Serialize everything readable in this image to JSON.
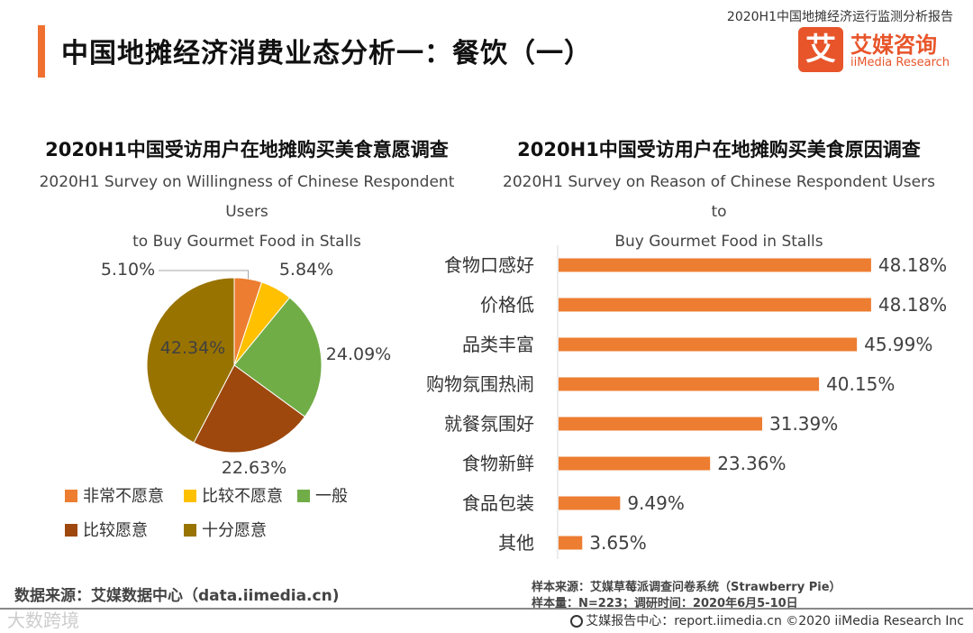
{
  "header": {
    "report_name": "2020H1中国地摊经济运行监测分析报告",
    "title": "中国地摊经济消费业态分析一：餐饮（一）",
    "logo_mark": "艾",
    "logo_cn": "艾媒咨询",
    "logo_en": "iiMedia Research"
  },
  "colors": {
    "accent": "#f07030",
    "bar": "#ed7d31"
  },
  "chart_data": [
    {
      "type": "pie",
      "title": "2020H1中国受访用户在地摊购买美食意愿调查",
      "subtitle_en_line1": "2020H1 Survey on Willingness of Chinese Respondent Users",
      "subtitle_en_line2": "to Buy Gourmet Food in Stalls",
      "slices": [
        {
          "label": "非常不愿意",
          "value": 5.1,
          "display": "5.10%",
          "color": "#ed7d31"
        },
        {
          "label": "比较不愿意",
          "value": 5.84,
          "display": "5.84%",
          "color": "#ffc000"
        },
        {
          "label": "一般",
          "value": 24.09,
          "display": "24.09%",
          "color": "#70ad47"
        },
        {
          "label": "比较愿意",
          "value": 22.63,
          "display": "22.63%",
          "color": "#9e480e"
        },
        {
          "label": "十分愿意",
          "value": 42.34,
          "display": "42.34%",
          "color": "#997300"
        }
      ],
      "legend_position": "bottom"
    },
    {
      "type": "bar",
      "orientation": "horizontal",
      "title": "2020H1中国受访用户在地摊购买美食原因调查",
      "subtitle_en_line1": "2020H1 Survey on Reason of Chinese Respondent Users to",
      "subtitle_en_line2": "Buy Gourmet Food in Stalls",
      "categories": [
        "食物口感好",
        "价格低",
        "品类丰富",
        "购物氛围热闹",
        "就餐氛围好",
        "食物新鲜",
        "食品包装",
        "其他"
      ],
      "values": [
        48.18,
        48.18,
        45.99,
        40.15,
        31.39,
        23.36,
        9.49,
        3.65
      ],
      "value_labels": [
        "48.18%",
        "48.18%",
        "45.99%",
        "40.15%",
        "31.39%",
        "23.36%",
        "9.49%",
        "3.65%"
      ],
      "xlim": [
        0,
        50
      ]
    }
  ],
  "notes": {
    "sample_source": "样本来源：艾媒草莓派调查问卷系统（Strawberry Pie）",
    "sample_size": "样本量：N=223；调研时间：2020年6月5-10日",
    "data_source": "数据来源：艾媒数据中心（data.iimedia.cn)",
    "watermark": "大数跨境",
    "footer": "艾媒报告中心：report.iimedia.cn  ©2020  iiMedia Research  Inc"
  }
}
